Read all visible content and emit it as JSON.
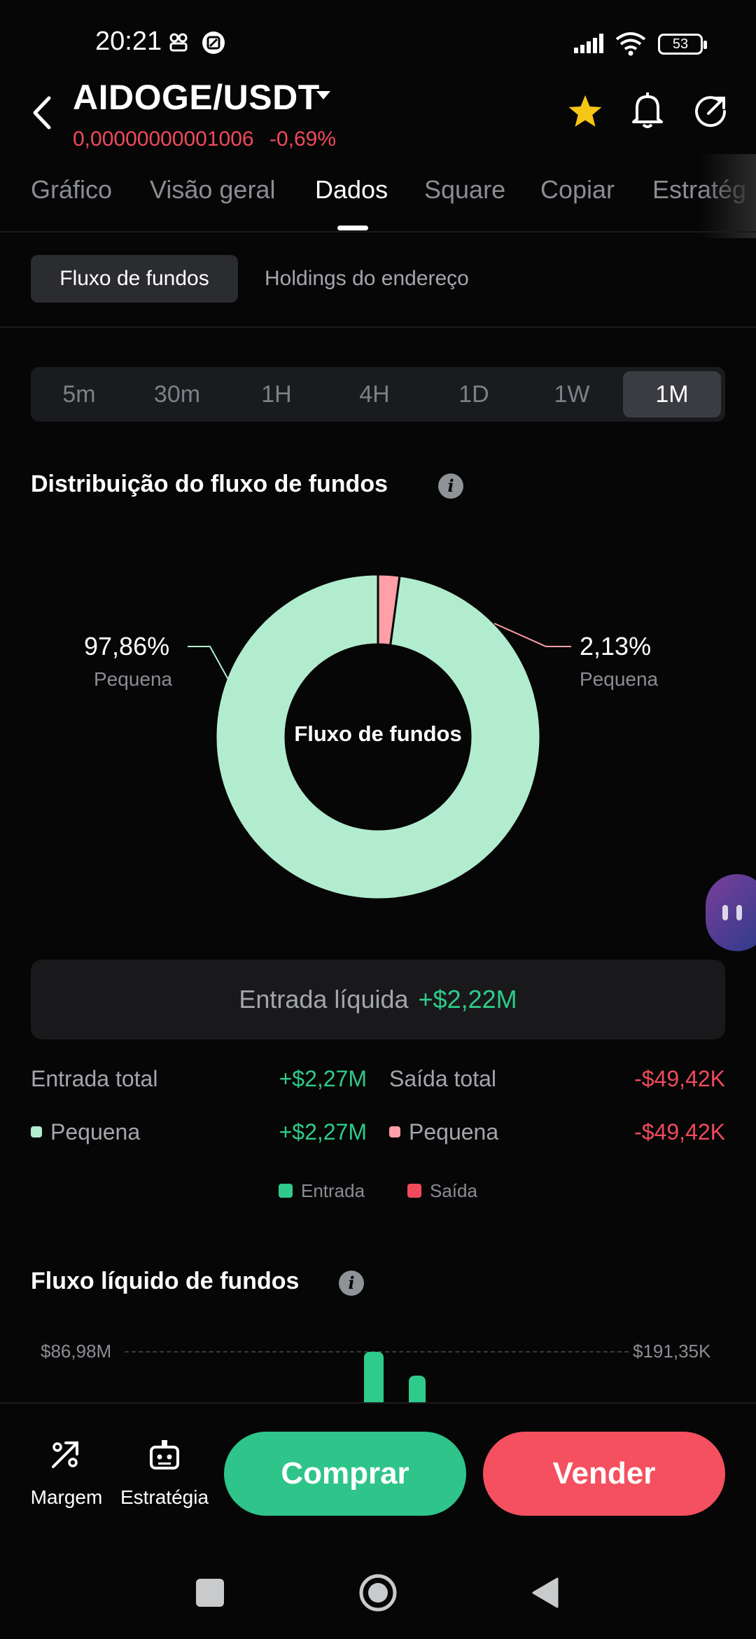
{
  "status_bar": {
    "time": "20:21",
    "battery": "53"
  },
  "header": {
    "pair": "AIDOGE/USDT",
    "price": "0,00000000001006",
    "change": "-0,69%"
  },
  "tabs": [
    "Gráfico",
    "Visão geral",
    "Dados",
    "Square",
    "Copiar",
    "Estratég"
  ],
  "active_tab": "Dados",
  "sub_tabs": {
    "active": "Fluxo de fundos",
    "other": "Holdings do endereço"
  },
  "ranges": [
    "5m",
    "30m",
    "1H",
    "4H",
    "1D",
    "1W",
    "1M"
  ],
  "active_range": "1M",
  "distribution": {
    "title": "Distribuição do fluxo de fundos",
    "center_label": "Fluxo de fundos",
    "left_value": "97,86%",
    "left_sub": "Pequena",
    "right_value": "2,13%",
    "right_sub": "Pequena"
  },
  "chart_data": {
    "type": "pie",
    "categories": [
      "Entrada",
      "Saída"
    ],
    "values": [
      97.86,
      2.13
    ],
    "colors": [
      "#b2eccf",
      "#ff9fa8"
    ],
    "title": "Distribuição do fluxo de fundos"
  },
  "net": {
    "label": "Entrada líquida",
    "value": "+$2,22M"
  },
  "totals": {
    "inflow_label": "Entrada total",
    "inflow_value": "+$2,27M",
    "outflow_label": "Saída total",
    "outflow_value": "-$49,42K",
    "small_in_label": "Pequena",
    "small_in_value": "+$2,27M",
    "small_out_label": "Pequena",
    "small_out_value": "-$49,42K"
  },
  "legend": {
    "in": "Entrada",
    "out": "Saída"
  },
  "net_flow": {
    "title": "Fluxo líquido de fundos",
    "left_axis": "$86,98M",
    "right_axis": "$191,35K"
  },
  "bottom": {
    "margin": "Margem",
    "strategy": "Estratégia",
    "buy": "Comprar",
    "sell": "Vender"
  },
  "colors": {
    "green": "#2ecb8a",
    "red": "#f04a5c",
    "inflow_slice": "#b2eccf",
    "outflow_slice": "#ff9fa8",
    "star": "#f5c518"
  }
}
